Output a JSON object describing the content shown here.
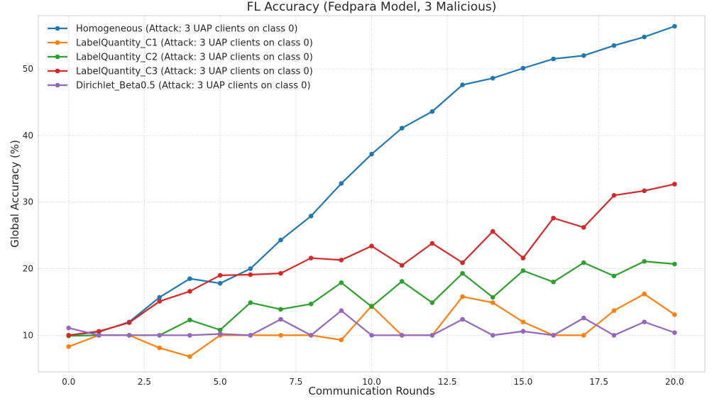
{
  "chart_data": {
    "type": "line",
    "title": "FL Accuracy (Fedpara Model, 3 Malicious)",
    "xlabel": "Communication Rounds",
    "ylabel": "Global Accuracy (%)",
    "xlim": [
      -1,
      21
    ],
    "ylim": [
      4.5,
      58
    ],
    "xticks": [
      0.0,
      2.5,
      5.0,
      7.5,
      10.0,
      12.5,
      15.0,
      17.5,
      20.0
    ],
    "xtick_labels": [
      "0.0",
      "2.5",
      "5.0",
      "7.5",
      "10.0",
      "12.5",
      "15.0",
      "17.5",
      "20.0"
    ],
    "yticks": [
      10,
      20,
      30,
      40,
      50
    ],
    "ytick_labels": [
      "10",
      "20",
      "30",
      "40",
      "50"
    ],
    "grid": true,
    "legend_position": "top-left",
    "x": [
      0,
      1,
      2,
      3,
      4,
      5,
      6,
      7,
      8,
      9,
      10,
      11,
      12,
      13,
      14,
      15,
      16,
      17,
      18,
      19,
      20
    ],
    "series": [
      {
        "name": "Homogeneous (Attack: 3 UAP clients on class 0)",
        "color": "#1f77b4",
        "values": [
          10.0,
          10.5,
          12.0,
          15.7,
          18.5,
          17.8,
          20.0,
          24.3,
          27.9,
          32.8,
          37.2,
          41.1,
          43.6,
          47.6,
          48.6,
          50.1,
          51.5,
          52.0,
          53.5,
          54.8,
          56.4
        ]
      },
      {
        "name": "LabelQuantity_C1 (Attack: 3 UAP clients on class 0)",
        "color": "#ff7f0e",
        "values": [
          8.3,
          10.0,
          10.0,
          8.1,
          6.8,
          10.0,
          10.0,
          10.0,
          10.0,
          9.3,
          14.4,
          10.0,
          10.0,
          15.8,
          14.9,
          12.0,
          10.0,
          10.0,
          13.7,
          16.2,
          13.1
        ]
      },
      {
        "name": "LabelQuantity_C2 (Attack: 3 UAP clients on class 0)",
        "color": "#2ca02c",
        "values": [
          9.9,
          10.0,
          10.0,
          10.0,
          12.3,
          10.8,
          14.9,
          13.9,
          14.7,
          17.9,
          14.3,
          18.1,
          14.9,
          19.3,
          15.7,
          19.7,
          18.0,
          20.9,
          18.9,
          21.1,
          20.7
        ]
      },
      {
        "name": "LabelQuantity_C3 (Attack: 3 UAP clients on class 0)",
        "color": "#d62728",
        "values": [
          10.0,
          10.6,
          11.9,
          15.1,
          16.6,
          19.0,
          19.1,
          19.3,
          21.6,
          21.3,
          23.4,
          20.5,
          23.8,
          20.9,
          25.6,
          21.6,
          27.6,
          26.2,
          31.0,
          31.7,
          32.7
        ]
      },
      {
        "name": "Dirichlet_Beta0.5 (Attack: 3 UAP clients on class 0)",
        "color": "#9467bd",
        "values": [
          11.1,
          10.0,
          10.0,
          10.0,
          10.0,
          10.2,
          10.0,
          12.4,
          10.0,
          13.7,
          10.0,
          10.0,
          10.0,
          12.4,
          10.0,
          10.6,
          10.0,
          12.6,
          10.0,
          12.0,
          10.4
        ]
      }
    ]
  }
}
